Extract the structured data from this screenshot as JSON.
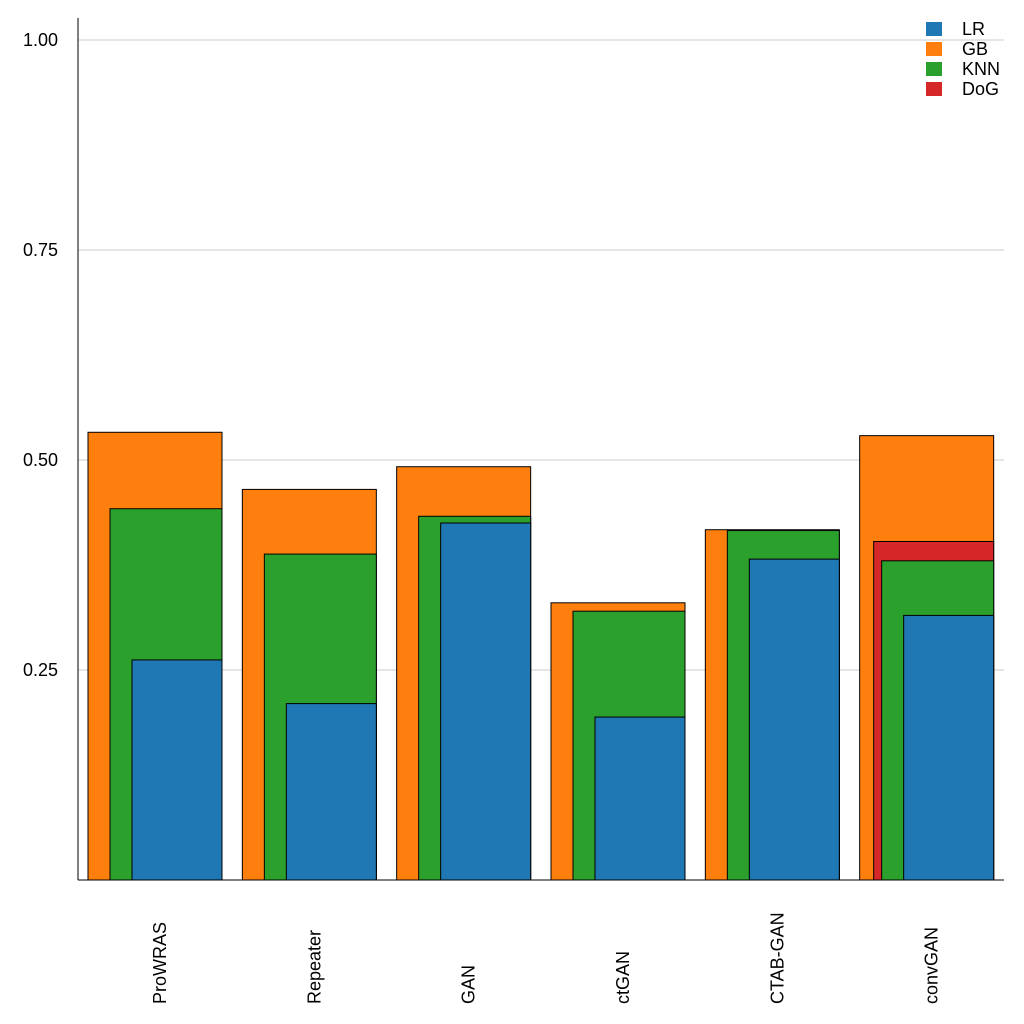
{
  "chart_data": {
    "type": "bar",
    "title": "",
    "xlabel": "",
    "ylabel": "",
    "ylim": [
      0,
      1.0
    ],
    "yticks": [
      "0.25",
      "0.50",
      "0.75",
      "1.00"
    ],
    "grid": "horizontal",
    "legend_position": "top-right",
    "layout": "overlapping-bars",
    "categories": [
      "ProWRAS",
      "Repeater",
      "GAN",
      "ctGAN",
      "CTAB-GAN",
      "convGAN"
    ],
    "series": [
      {
        "name": "LR",
        "color": "#1f77b4",
        "values": [
          0.262,
          0.21,
          0.425,
          0.194,
          0.382,
          0.315
        ]
      },
      {
        "name": "GB",
        "color": "#ff7f0e",
        "values": [
          0.533,
          0.465,
          0.492,
          0.33,
          0.417,
          0.529
        ]
      },
      {
        "name": "KNN",
        "color": "#2ca02c",
        "values": [
          0.442,
          0.388,
          0.433,
          0.32,
          0.416,
          0.38
        ]
      },
      {
        "name": "DoG",
        "color": "#d62728",
        "values": [
          null,
          null,
          null,
          null,
          null,
          0.403
        ]
      }
    ]
  }
}
